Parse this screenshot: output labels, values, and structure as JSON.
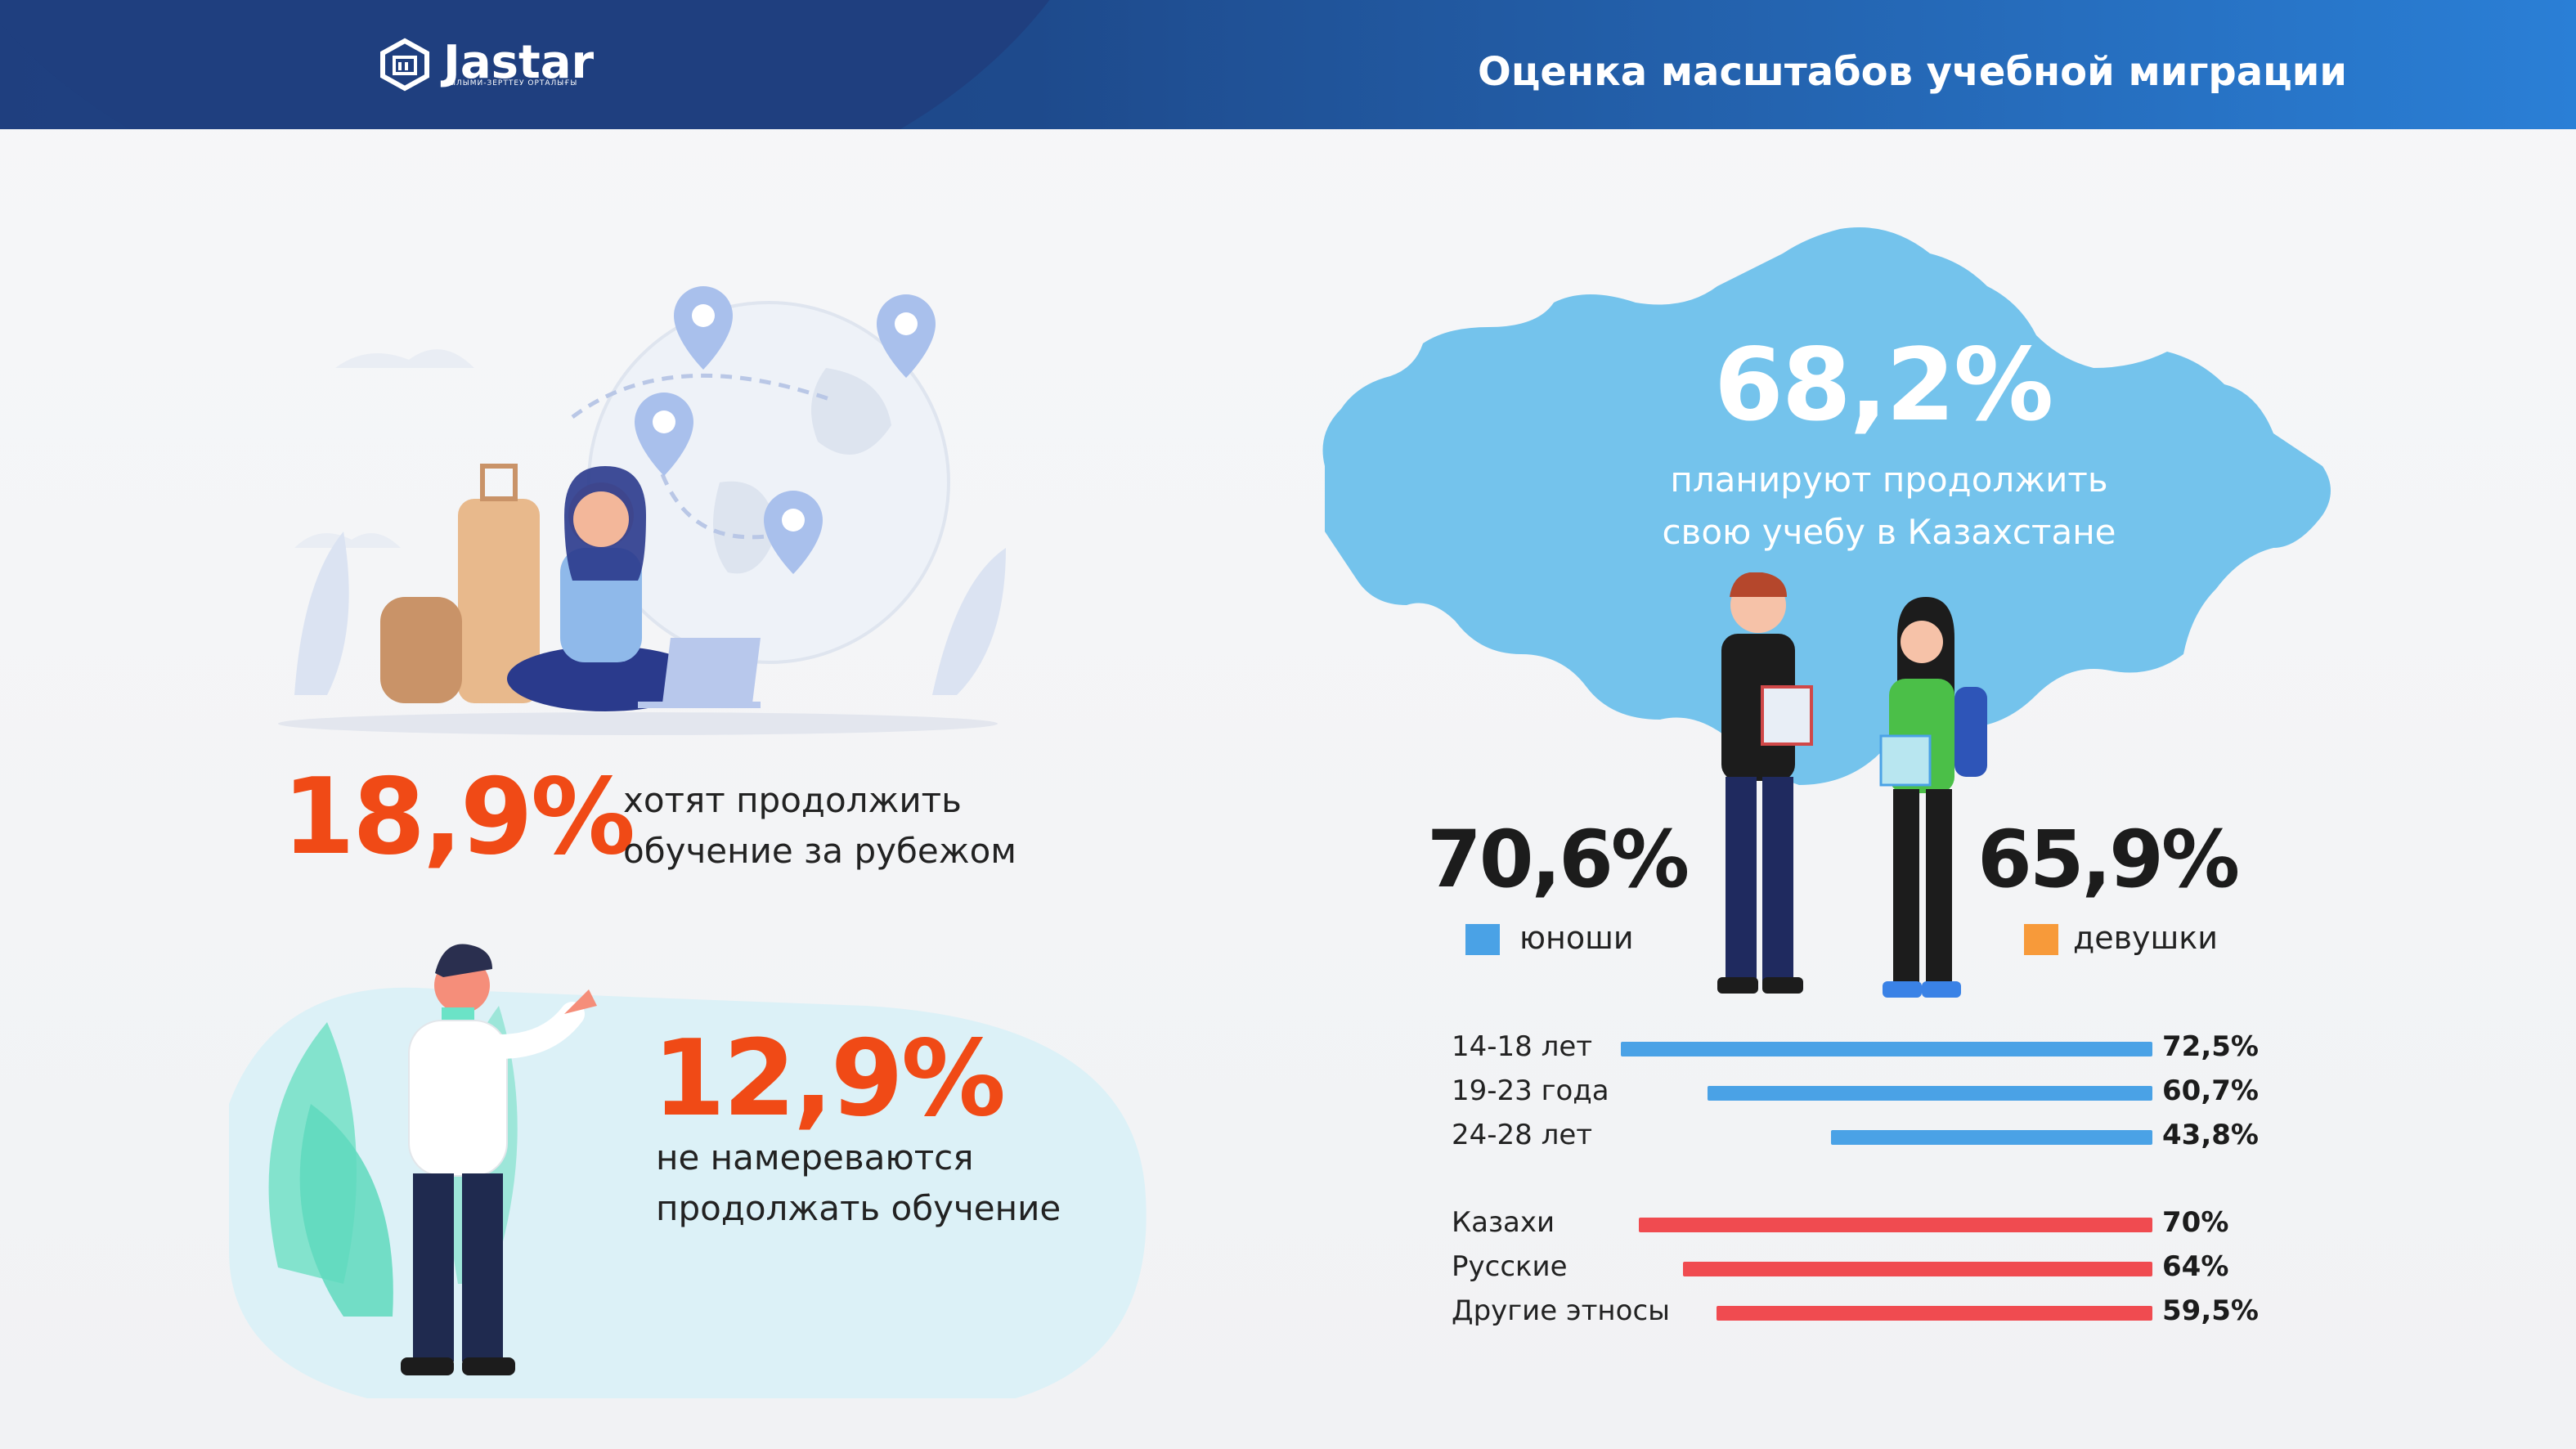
{
  "header": {
    "brand": "Jastar",
    "brand_subtitle": "ҒЫЛЫМИ-ЗЕРТТЕУ ОРТАЛЫҒЫ",
    "title": "Оценка масштабов учебной миграции"
  },
  "colors": {
    "header_blue": "#1e4a8c",
    "accent_orange": "#f04a16",
    "map_blue": "#74c3ec",
    "bar_blue": "#4aa2e6",
    "bar_red": "#f04b50",
    "legend_orange": "#f79a3a"
  },
  "stats": {
    "abroad": {
      "value": "18,9%",
      "text_line1": "хотят продолжить",
      "text_line2": "обучение за рубежом"
    },
    "not_continue": {
      "value": "12,9%",
      "text_line1": "не намереваются",
      "text_line2": "продолжать обучение"
    },
    "kazakhstan": {
      "value": "68,2%",
      "text_line1": "планируют продолжить",
      "text_line2": "свою учебу в Казахстане"
    }
  },
  "gender": {
    "male": {
      "value": "70,6%",
      "label": "юноши",
      "color": "#4aa2e6"
    },
    "female": {
      "value": "65,9%",
      "label": "девушки",
      "color": "#f79a3a"
    }
  },
  "chart_data": [
    {
      "type": "bar",
      "categories": [
        "14-18 лет",
        "19-23 года",
        "24-28 лет"
      ],
      "values": [
        72.5,
        60.7,
        43.8
      ],
      "labels": [
        "72,5%",
        "60,7%",
        "43,8%"
      ],
      "color": "#4aa2e6"
    },
    {
      "type": "bar",
      "categories": [
        "Казахи",
        "Русские",
        "Другие этносы"
      ],
      "values": [
        70,
        64,
        59.5
      ],
      "labels": [
        "70%",
        "64%",
        "59,5%"
      ],
      "color": "#f04b50"
    }
  ]
}
